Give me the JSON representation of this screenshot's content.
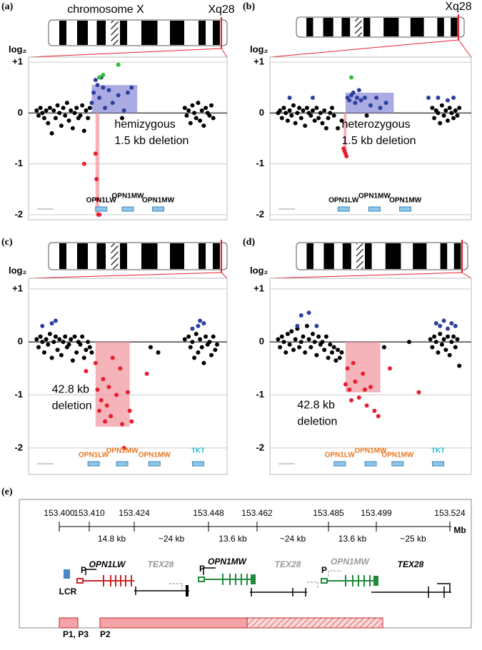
{
  "chart_data": [
    {
      "type": "scatter",
      "panel_label": "(a)",
      "chromosome_label": "chromosome X",
      "band_label": "Xq28",
      "y_label": "log₂",
      "ylim": [
        -2.1,
        1.1
      ],
      "xlim": [
        0,
        100
      ],
      "yticks": [
        {
          "value": 1,
          "label": "+1"
        },
        0,
        -1,
        -2
      ],
      "series": [
        {
          "color": "#000000",
          "x": [
            2,
            3,
            4,
            5,
            6,
            7,
            8,
            9,
            10,
            11,
            12,
            13,
            14,
            15,
            16,
            17,
            18,
            19,
            20,
            21,
            22,
            23,
            24,
            25,
            26,
            27,
            28,
            29,
            30,
            47,
            80,
            81,
            82,
            83,
            84,
            85,
            86,
            87,
            88,
            89,
            90,
            91,
            92,
            93,
            94,
            95
          ],
          "values": [
            0.05,
            -0.05,
            0.1,
            0,
            -0.1,
            0.05,
            -0.2,
            0.1,
            -0.4,
            0.05,
            -0.1,
            0.15,
            0,
            -0.25,
            0.1,
            -0.05,
            0.2,
            -0.15,
            0.05,
            -0.3,
            0,
            0.1,
            -0.1,
            -0.05,
            0.15,
            -0.35,
            0.05,
            -0.1,
            0.1,
            -0.1,
            0.1,
            -0.05,
            0.05,
            -0.2,
            0.15,
            0,
            -0.1,
            0.2,
            -0.15,
            0.05,
            -0.25,
            0.1,
            0,
            -0.05,
            0.15,
            -0.1
          ]
        },
        {
          "color": "#2e3f9e",
          "x": [
            31,
            32,
            33,
            34,
            35,
            36,
            37,
            38,
            40,
            42,
            45,
            48,
            50,
            52
          ],
          "values": [
            0.2,
            0.4,
            0.65,
            0.55,
            0.3,
            0.7,
            0.5,
            0.1,
            0.45,
            0.2,
            0.35,
            0.05,
            0.4,
            0.5
          ]
        },
        {
          "color": "#2fbf3a",
          "x": [
            35,
            37,
            45
          ],
          "values": [
            0.7,
            0.75,
            0.95
          ]
        },
        {
          "color": "#e8202e",
          "x": [
            27,
            33,
            33.5,
            34,
            34.5,
            35
          ],
          "values": [
            -1,
            -0.8,
            -1.3,
            -1.7,
            -2,
            -2
          ]
        }
      ],
      "regions": [
        {
          "color": "#8c8fd8",
          "x": [
            31,
            55
          ],
          "y": [
            0,
            0.55
          ]
        },
        {
          "color": "#f29aa3",
          "x": [
            33,
            35
          ],
          "y": [
            -2,
            0
          ]
        }
      ],
      "annotation": [
        "hemizygous",
        "1.5 kb deletion"
      ],
      "gene_color": "#000000",
      "genes": [
        {
          "label": "OPN1LW",
          "x": 36
        },
        {
          "label": "OPN1MW",
          "x": 50
        },
        {
          "label": "OPN1MW",
          "x": 66
        }
      ]
    },
    {
      "type": "scatter",
      "panel_label": "(b)",
      "band_label": "Xq28",
      "y_label": "log₂",
      "ylim": [
        -2.1,
        1.1
      ],
      "xlim": [
        0,
        100
      ],
      "yticks": [
        {
          "value": 1,
          "label": "+1"
        },
        0,
        -1,
        -2
      ],
      "series": [
        {
          "color": "#000000",
          "x": [
            2,
            3,
            4,
            5,
            6,
            7,
            8,
            9,
            10,
            11,
            12,
            13,
            14,
            15,
            16,
            17,
            18,
            19,
            20,
            21,
            22,
            23,
            24,
            25,
            26,
            27,
            28,
            29,
            30,
            31,
            33,
            35,
            48,
            82,
            83,
            84,
            85,
            86,
            87,
            88,
            89,
            90,
            91,
            92,
            93,
            94,
            95,
            96
          ],
          "values": [
            0,
            0.05,
            -0.1,
            0.1,
            0,
            -0.15,
            0.05,
            -0.05,
            0.15,
            -0.2,
            0,
            0.1,
            -0.1,
            0.05,
            -0.25,
            0.1,
            0,
            -0.05,
            0.05,
            -0.15,
            0.1,
            -0.1,
            0,
            -0.2,
            0.05,
            -0.3,
            -0.1,
            0,
            0.1,
            -0.05,
            -0.3,
            -0.15,
            -0.05,
            0.1,
            -0.1,
            0.05,
            0,
            -0.2,
            0.15,
            -0.05,
            0.05,
            -0.15,
            0.1,
            0,
            -0.1,
            0.05,
            -0.05,
            0.1
          ]
        },
        {
          "color": "#2e3f9e",
          "x": [
            8,
            20,
            38,
            39,
            40,
            41,
            42,
            43,
            44,
            45,
            47,
            50,
            53,
            55,
            58,
            80,
            85,
            90,
            93
          ],
          "values": [
            0.3,
            0.3,
            0.3,
            0.25,
            0.35,
            0.4,
            0.2,
            0.3,
            0.45,
            0.25,
            0.3,
            0.15,
            0.3,
            0.1,
            0.2,
            0.3,
            0.3,
            0.25,
            0.3
          ]
        },
        {
          "color": "#2fbf3a",
          "x": [
            40
          ],
          "values": [
            0.7
          ]
        },
        {
          "color": "#e8202e",
          "x": [
            36,
            36.5,
            37,
            37.5
          ],
          "values": [
            -0.7,
            -0.75,
            -0.8,
            -0.85
          ]
        }
      ],
      "regions": [
        {
          "color": "#8c8fd8",
          "x": [
            37,
            62
          ],
          "y": [
            0,
            0.4
          ]
        },
        {
          "color": "#f29aa3",
          "x": [
            36,
            37.5
          ],
          "y": [
            -0.8,
            0
          ]
        }
      ],
      "annotation": [
        "heterozygous",
        "1.5 kb deletion"
      ],
      "gene_color": "#000000",
      "genes": [
        {
          "label": "OPN1LW",
          "x": 36
        },
        {
          "label": "OPN1MW",
          "x": 52
        },
        {
          "label": "OPN1MW",
          "x": 68
        }
      ]
    },
    {
      "type": "scatter",
      "panel_label": "(c)",
      "y_label": "log₂",
      "ylim": [
        -2.5,
        1.2
      ],
      "xlim": [
        0,
        100
      ],
      "yticks": [
        {
          "value": 1,
          "label": "+1"
        },
        0,
        -1,
        -2
      ],
      "series": [
        {
          "color": "#000000",
          "x": [
            2,
            3,
            4,
            5,
            6,
            7,
            8,
            9,
            10,
            11,
            12,
            13,
            14,
            15,
            16,
            17,
            18,
            19,
            20,
            21,
            22,
            23,
            24,
            25,
            26,
            27,
            28,
            29,
            30,
            31,
            62,
            66,
            80,
            82,
            83,
            84,
            85,
            86,
            87,
            88,
            89,
            90,
            91,
            92,
            93,
            94,
            95,
            96,
            97
          ],
          "values": [
            0.05,
            -0.1,
            0.1,
            0,
            -0.2,
            0.05,
            -0.05,
            0.15,
            -0.3,
            0,
            0.1,
            -0.15,
            0.05,
            -0.25,
            0,
            0.1,
            -0.1,
            -0.05,
            0.05,
            -0.35,
            0.1,
            -0.2,
            0,
            -0.05,
            0.1,
            -0.3,
            -0.15,
            0,
            -0.1,
            -0.2,
            -0.1,
            -0.2,
            0.05,
            0.1,
            -0.1,
            0,
            -0.3,
            0.15,
            -0.2,
            0.05,
            -0.1,
            -0.4,
            0.1,
            -0.05,
            0,
            -0.25,
            0.1,
            -0.15,
            -0.05
          ]
        },
        {
          "color": "#2e3f9e",
          "x": [
            5,
            10,
            12,
            84,
            87,
            88,
            90
          ],
          "values": [
            0.3,
            0.35,
            0.4,
            0.25,
            0.3,
            0.4,
            0.35
          ]
        },
        {
          "color": "#e8202e",
          "x": [
            28,
            33,
            34,
            35,
            36,
            37,
            38,
            39,
            40,
            41,
            42,
            44,
            46,
            47,
            48,
            50,
            51,
            52,
            60
          ],
          "values": [
            -0.55,
            -0.4,
            -0.9,
            -1.3,
            -1.1,
            -0.7,
            -1.5,
            -1.2,
            -0.85,
            -1.4,
            -0.3,
            -1,
            -0.5,
            -1.55,
            -2,
            -0.95,
            -1.3,
            -1.5,
            -0.6
          ]
        }
      ],
      "regions": [
        {
          "color": "#f29aa3",
          "x": [
            33,
            51
          ],
          "y": [
            -1.6,
            0
          ]
        }
      ],
      "annotation": [
        "42.8 kb",
        "deletion"
      ],
      "gene_color": "#e8761e",
      "genes": [
        {
          "label": "OPN1LW",
          "x": 32
        },
        {
          "label": "OPN1MW",
          "x": 47
        },
        {
          "label": "OPN1MW",
          "x": 64
        },
        {
          "label": "TKT",
          "x": 87
        }
      ]
    },
    {
      "type": "scatter",
      "panel_label": "(d)",
      "y_label": "log₂",
      "ylim": [
        -2.5,
        1.2
      ],
      "xlim": [
        0,
        100
      ],
      "yticks": [
        {
          "value": 1,
          "label": "+1"
        },
        0,
        -1,
        -2
      ],
      "series": [
        {
          "color": "#000000",
          "x": [
            2,
            3,
            4,
            5,
            6,
            7,
            8,
            9,
            10,
            11,
            12,
            13,
            14,
            15,
            16,
            17,
            18,
            19,
            20,
            21,
            22,
            23,
            24,
            25,
            26,
            27,
            28,
            29,
            30,
            31,
            32,
            33,
            34,
            35,
            57,
            70,
            81,
            82,
            83,
            84,
            85,
            86,
            87,
            88,
            89,
            90,
            91,
            92,
            93,
            94,
            95,
            96
          ],
          "values": [
            0.05,
            -0.1,
            0.1,
            0,
            -0.2,
            0.15,
            -0.05,
            0.2,
            -0.15,
            0.05,
            0.25,
            -0.1,
            0,
            0.1,
            -0.2,
            0.3,
            0.05,
            -0.1,
            0.15,
            0,
            -0.25,
            0.1,
            -0.05,
            0,
            -0.15,
            0.1,
            -0.3,
            -0.05,
            -0.2,
            -0.1,
            -0.35,
            -0.15,
            -0.3,
            -0.2,
            -0.1,
            0,
            0.05,
            -0.1,
            0.1,
            0,
            -0.2,
            0.15,
            -0.05,
            0.05,
            -0.15,
            0.1,
            -0.25,
            0,
            0.1,
            -0.1,
            0.05,
            -0.45
          ]
        },
        {
          "color": "#2e3f9e",
          "x": [
            12,
            14,
            18,
            22,
            84,
            86,
            88,
            90,
            92,
            94
          ],
          "values": [
            0.3,
            0.5,
            0.55,
            0.3,
            0.35,
            0.3,
            0.4,
            0.25,
            0.35,
            0.3
          ]
        },
        {
          "color": "#e8202e",
          "x": [
            37,
            38,
            39,
            40,
            41,
            42,
            44,
            46,
            47,
            48,
            50,
            52,
            54,
            60,
            75
          ],
          "values": [
            -0.8,
            -0.5,
            -0.9,
            -1.1,
            -0.4,
            -0.75,
            -1.05,
            -0.6,
            -0.9,
            -1.2,
            -0.85,
            -1.3,
            -1.4,
            -0.5,
            -0.95
          ]
        }
      ],
      "regions": [
        {
          "color": "#f29aa3",
          "x": [
            37,
            55
          ],
          "y": [
            -0.95,
            0
          ]
        }
      ],
      "annotation": [
        "42.8 kb",
        "deletion"
      ],
      "gene_color": "#e8761e",
      "genes": [
        {
          "label": "OPN1LW",
          "x": 34
        },
        {
          "label": "OPN1MW",
          "x": 50
        },
        {
          "label": "OPN1MW",
          "x": 64
        },
        {
          "label": "TKT",
          "x": 85
        }
      ]
    }
  ],
  "panel_e": {
    "panel_label": "(e)",
    "unit": "Mb",
    "scale": [
      "153.400",
      "153.410",
      "153.424",
      "153.448",
      "153.462",
      "153.485",
      "153.499",
      "153.524"
    ],
    "intervals": [
      "14.8 kb",
      "~24 kb",
      "13.6 kb",
      "~24 kb",
      "13.6 kb",
      "~25 kb"
    ],
    "genes": [
      "OPN1LW",
      "TEX28",
      "OPN1MW",
      "TEX28",
      "OPN1MW",
      "TEX28"
    ],
    "promoter": "P",
    "lcr": "LCR",
    "bars": [
      "P1, P3",
      "P2"
    ]
  }
}
